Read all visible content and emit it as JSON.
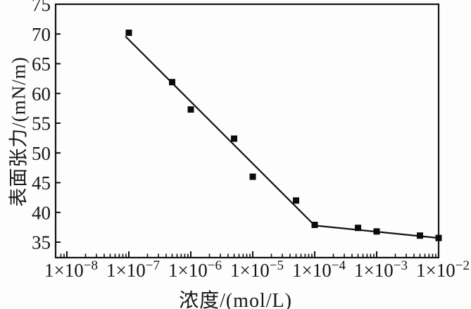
{
  "figure": {
    "background": "#fdfdfd",
    "text_color": "#161616",
    "axis_color": "#111111"
  },
  "chart_data": {
    "type": "scatter",
    "title": "",
    "xlabel": "浓度/(mol/L)",
    "ylabel": "表面张力/(mN/m)",
    "x_scale": "log",
    "xlim_log10": [
      -8.1818,
      -2
    ],
    "ylim": [
      32.4,
      75
    ],
    "grid": false,
    "legend": null,
    "y_ticks": [
      35,
      40,
      45,
      50,
      55,
      60,
      65,
      70,
      75
    ],
    "x_major_ticks": [
      {
        "mantissa": "1×10",
        "exponent": "−8",
        "log10": -8
      },
      {
        "mantissa": "1×10",
        "exponent": "−7",
        "log10": -7
      },
      {
        "mantissa": "1×10",
        "exponent": "−6",
        "log10": -6
      },
      {
        "mantissa": "1×10",
        "exponent": "−5",
        "log10": -5
      },
      {
        "mantissa": "1×10",
        "exponent": "−4",
        "log10": -4
      },
      {
        "mantissa": "1×10",
        "exponent": "−3",
        "log10": -3
      },
      {
        "mantissa": "1×10",
        "exponent": "−2",
        "log10": -2
      }
    ],
    "series": [
      {
        "name": "表面张力",
        "marker": "square",
        "marker_size": 9,
        "color": "#0b0b0b",
        "points": [
          {
            "x": 1e-07,
            "y": 70.2
          },
          {
            "x": 5e-07,
            "y": 61.9
          },
          {
            "x": 1e-06,
            "y": 57.3
          },
          {
            "x": 5e-06,
            "y": 52.4
          },
          {
            "x": 1e-05,
            "y": 46.0
          },
          {
            "x": 5e-05,
            "y": 42.0
          },
          {
            "x": 0.0001,
            "y": 37.9
          },
          {
            "x": 0.0005,
            "y": 37.4
          },
          {
            "x": 0.001,
            "y": 36.8
          },
          {
            "x": 0.005,
            "y": 36.1
          },
          {
            "x": 0.01,
            "y": 35.7
          }
        ]
      }
    ],
    "fit_lines": [
      {
        "x1": 8.8e-08,
        "y1": 69.6,
        "x2": 0.0001,
        "y2": 37.8
      },
      {
        "x1": 0.0001,
        "y1": 37.8,
        "x2": 0.01,
        "y2": 35.7
      }
    ]
  }
}
